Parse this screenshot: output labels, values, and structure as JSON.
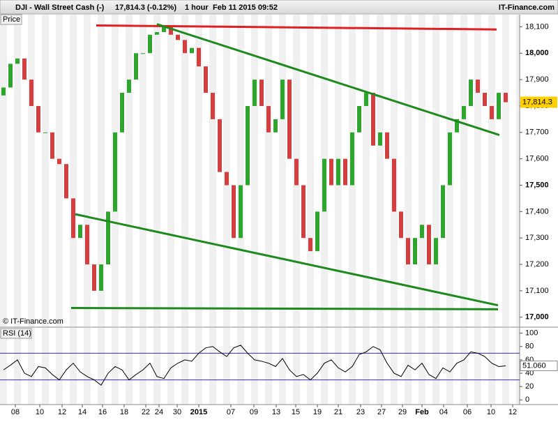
{
  "chart_data": [
    {
      "type": "candlestick",
      "title": "DJI - Wall Street Cash (-)",
      "quote": "17,814.3 (-0.12%)",
      "interval": "1 hour",
      "timestamp": "Feb 11 2015 09:52",
      "source": "IT-Finance.com",
      "panel_label": "Price",
      "watermark": "© IT-Finance.com",
      "up_color": "#2fa52f",
      "down_color": "#d04040",
      "open": [
        17840,
        17870,
        17960,
        17980,
        17900,
        17800,
        17700,
        17700,
        17600,
        17580,
        17450,
        17300,
        17350,
        17200,
        17100,
        17200,
        17400,
        17700,
        17850,
        17900,
        18000,
        18000,
        18070,
        18080,
        18100,
        18070,
        18050,
        18000,
        18020,
        17950,
        17850,
        17750,
        17550,
        17500,
        17300,
        17500,
        17800,
        17900,
        17800,
        17700,
        17750,
        17900,
        17600,
        17500,
        17300,
        17250,
        17400,
        17600,
        17500,
        17600,
        17500,
        17700,
        17800,
        17850,
        17650,
        17700,
        17600,
        17400,
        17300,
        17200,
        17300,
        17350,
        17200,
        17300,
        17500,
        17700,
        17750,
        17800,
        17900,
        17850,
        17800,
        17750,
        17850
      ],
      "close": [
        17870,
        17960,
        17980,
        17900,
        17800,
        17700,
        17700,
        17600,
        17580,
        17450,
        17300,
        17350,
        17200,
        17100,
        17200,
        17400,
        17700,
        17850,
        17900,
        18000,
        18000,
        18070,
        18080,
        18100,
        18070,
        18050,
        18000,
        18020,
        17950,
        17850,
        17750,
        17550,
        17500,
        17300,
        17500,
        17800,
        17900,
        17800,
        17700,
        17750,
        17900,
        17600,
        17500,
        17300,
        17250,
        17400,
        17600,
        17500,
        17600,
        17500,
        17700,
        17800,
        17850,
        17650,
        17700,
        17600,
        17400,
        17300,
        17200,
        17300,
        17350,
        17200,
        17300,
        17500,
        17700,
        17750,
        17800,
        17900,
        17850,
        17800,
        17750,
        17850,
        17814.3
      ],
      "last_price": {
        "value": 17814.3,
        "label": "17,814.3"
      },
      "xlim": [
        0,
        74.5
      ],
      "ylim": [
        16965,
        18146
      ],
      "yticks": [
        {
          "value": 17000,
          "label": "17,000"
        },
        {
          "value": 17100,
          "label": "17,100"
        },
        {
          "value": 17200,
          "label": "17,200"
        },
        {
          "value": 17300,
          "label": "17,300"
        },
        {
          "value": 17400,
          "label": "17,400"
        },
        {
          "value": 17500,
          "label": "17,500"
        },
        {
          "value": 17600,
          "label": "17,600"
        },
        {
          "value": 17700,
          "label": "17,700"
        },
        {
          "value": 17800,
          "label": "17,800"
        },
        {
          "value": 17900,
          "label": "17,900"
        },
        {
          "value": 18000,
          "label": "18,000"
        },
        {
          "value": 18100,
          "label": "18,100"
        }
      ],
      "trend_lines": [
        {
          "color": "#e02020",
          "points": [
            [
              13.8,
              18105
            ],
            [
              71.2,
              18090
            ]
          ]
        },
        {
          "color": "#1e8a1e",
          "points": [
            [
              22.5,
              18110
            ],
            [
              71.6,
              17690
            ]
          ]
        },
        {
          "color": "#1e8a1e",
          "points": [
            [
              10.8,
              17390
            ],
            [
              71.4,
              17045
            ]
          ]
        },
        {
          "color": "#1e8a1e",
          "points": [
            [
              10.2,
              17035
            ],
            [
              71.4,
              17030
            ]
          ]
        }
      ]
    },
    {
      "type": "line",
      "title": "RSI (14)",
      "color": "#000000",
      "values": [
        45,
        52,
        60,
        40,
        35,
        50,
        48,
        38,
        30,
        45,
        55,
        42,
        35,
        30,
        22,
        40,
        50,
        45,
        30,
        38,
        45,
        55,
        35,
        32,
        48,
        55,
        60,
        58,
        70,
        78,
        80,
        72,
        65,
        78,
        82,
        70,
        60,
        58,
        55,
        50,
        62,
        45,
        35,
        38,
        30,
        40,
        55,
        60,
        48,
        42,
        50,
        68,
        72,
        80,
        75,
        55,
        40,
        35,
        52,
        45,
        55,
        38,
        32,
        48,
        42,
        55,
        60,
        72,
        70,
        65,
        55,
        50,
        51.06
      ],
      "last_value": {
        "value": 51.06,
        "label": "51.060"
      },
      "levels": [
        70,
        30
      ],
      "level_color": "#3030c0",
      "xlim": [
        0,
        74.5
      ],
      "ylim": [
        -7,
        108
      ],
      "yticks": [
        0,
        20,
        40,
        60,
        80,
        100
      ],
      "xticks": [
        {
          "value": 2.2,
          "label": "08"
        },
        {
          "value": 5.7,
          "label": "10"
        },
        {
          "value": 8.9,
          "label": "12"
        },
        {
          "value": 11.8,
          "label": "14"
        },
        {
          "value": 14.7,
          "label": "16"
        },
        {
          "value": 17.8,
          "label": "18"
        },
        {
          "value": 20.9,
          "label": "22"
        },
        {
          "value": 22.8,
          "label": "24"
        },
        {
          "value": 25.4,
          "label": "30"
        },
        {
          "value": 28.5,
          "label": "2015"
        },
        {
          "value": 33.1,
          "label": "07"
        },
        {
          "value": 36.4,
          "label": "09"
        },
        {
          "value": 39.6,
          "label": "13"
        },
        {
          "value": 42.4,
          "label": "15"
        },
        {
          "value": 45.5,
          "label": "19"
        },
        {
          "value": 48.5,
          "label": "21"
        },
        {
          "value": 51.7,
          "label": "23"
        },
        {
          "value": 54.7,
          "label": "27"
        },
        {
          "value": 57.7,
          "label": "29"
        },
        {
          "value": 60.5,
          "label": "Feb"
        },
        {
          "value": 63.6,
          "label": "04"
        },
        {
          "value": 67,
          "label": "06"
        },
        {
          "value": 70.4,
          "label": "10"
        },
        {
          "value": 73.5,
          "label": "12"
        }
      ]
    }
  ]
}
